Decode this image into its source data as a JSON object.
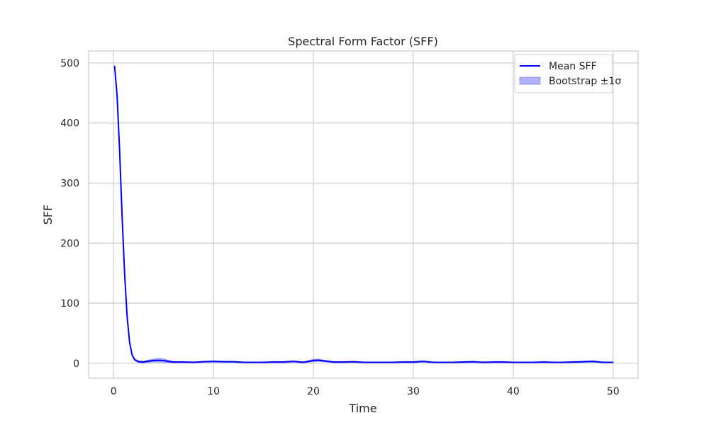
{
  "chart_data": {
    "type": "line",
    "title": "Spectral Form Factor (SFF)",
    "xlabel": "Time",
    "ylabel": "SFF",
    "xlim": [
      -2.5,
      52.5
    ],
    "ylim": [
      -25,
      520
    ],
    "xticks": [
      0,
      10,
      20,
      30,
      40,
      50
    ],
    "yticks": [
      0,
      100,
      200,
      300,
      400,
      500
    ],
    "grid": true,
    "legend_position": "top-right",
    "colors": {
      "line": "#0000ff",
      "band": "#0000ff",
      "grid": "#cccccc",
      "frame": "#cccccc"
    },
    "series": [
      {
        "name": "Mean SFF",
        "x": [
          0.1,
          0.35,
          0.6,
          0.85,
          1.1,
          1.35,
          1.6,
          1.85,
          2.1,
          2.5,
          3.0,
          3.5,
          4.0,
          4.5,
          5.0,
          5.5,
          6.0,
          7.0,
          8.0,
          9.0,
          10.0,
          11.0,
          12.0,
          13.0,
          14.0,
          15.0,
          16.0,
          17.0,
          18.0,
          19.0,
          20.0,
          20.5,
          21.0,
          22.0,
          23.0,
          24.0,
          25.0,
          26.0,
          27.0,
          28.0,
          29.0,
          30.0,
          31.0,
          32.0,
          33.0,
          34.0,
          35.0,
          36.0,
          37.0,
          38.0,
          39.0,
          40.0,
          41.0,
          42.0,
          43.0,
          44.0,
          45.0,
          46.0,
          47.0,
          48.0,
          49.0,
          50.0
        ],
        "values": [
          495,
          445,
          355,
          245,
          150,
          78,
          35,
          14,
          6,
          2.5,
          2,
          3.5,
          4.5,
          5,
          4.5,
          3,
          2,
          2,
          1.5,
          2.5,
          3,
          2.5,
          2.5,
          1.5,
          1.5,
          1.5,
          2,
          2,
          3,
          1.5,
          4.5,
          5,
          4,
          2,
          2,
          2.5,
          1.5,
          1.5,
          1.5,
          1.5,
          2,
          2,
          3,
          1.5,
          1.5,
          1.5,
          2,
          2.5,
          1.5,
          2,
          2,
          1.5,
          1.5,
          1.5,
          2,
          1.5,
          1.5,
          2,
          2.5,
          3,
          1.5,
          1.5
        ]
      },
      {
        "name": "Bootstrap ±1σ",
        "x": [
          0.1,
          0.35,
          0.6,
          0.85,
          1.1,
          1.35,
          1.6,
          1.85,
          2.1,
          2.5,
          3.0,
          3.5,
          4.0,
          4.5,
          5.0,
          5.5,
          6.0,
          7.0,
          8.0,
          9.0,
          10.0,
          11.0,
          12.0,
          13.0,
          14.0,
          15.0,
          16.0,
          17.0,
          18.0,
          19.0,
          20.0,
          20.5,
          21.0,
          22.0,
          23.0,
          24.0,
          25.0,
          26.0,
          27.0,
          28.0,
          29.0,
          30.0,
          31.0,
          32.0,
          33.0,
          34.0,
          35.0,
          36.0,
          37.0,
          38.0,
          39.0,
          40.0,
          41.0,
          42.0,
          43.0,
          44.0,
          45.0,
          46.0,
          47.0,
          48.0,
          49.0,
          50.0
        ],
        "lower": [
          493,
          443,
          353,
          243,
          148,
          76,
          33.5,
          12.5,
          4.5,
          1.0,
          0.5,
          1.5,
          2.0,
          2.0,
          1.5,
          1.0,
          0.8,
          1.0,
          0.8,
          1.5,
          1.8,
          1.5,
          1.5,
          0.8,
          0.8,
          0.8,
          1.0,
          1.0,
          1.8,
          0.5,
          2.5,
          3.0,
          2.5,
          1.0,
          1.0,
          1.5,
          0.8,
          0.8,
          0.8,
          0.8,
          1.0,
          1.0,
          1.8,
          0.8,
          0.8,
          0.8,
          1.0,
          1.5,
          0.8,
          1.0,
          1.0,
          0.8,
          0.8,
          0.8,
          1.0,
          0.8,
          0.8,
          1.0,
          1.5,
          1.8,
          0.8,
          0.8
        ],
        "upper": [
          497,
          447,
          357,
          247,
          152,
          80,
          36.5,
          15.5,
          7.5,
          4.0,
          3.5,
          5.5,
          7.0,
          8.0,
          7.5,
          5.0,
          3.2,
          3.0,
          2.2,
          3.5,
          4.2,
          3.5,
          3.5,
          2.2,
          2.2,
          2.2,
          3.0,
          3.0,
          4.2,
          2.5,
          6.5,
          7.0,
          5.5,
          3.0,
          3.0,
          3.5,
          2.2,
          2.2,
          2.2,
          2.2,
          3.0,
          3.0,
          4.2,
          2.2,
          2.2,
          2.2,
          3.0,
          3.5,
          2.2,
          3.0,
          3.0,
          2.2,
          2.2,
          2.2,
          3.0,
          2.2,
          2.2,
          3.0,
          3.5,
          4.2,
          2.2,
          2.2
        ]
      }
    ]
  }
}
